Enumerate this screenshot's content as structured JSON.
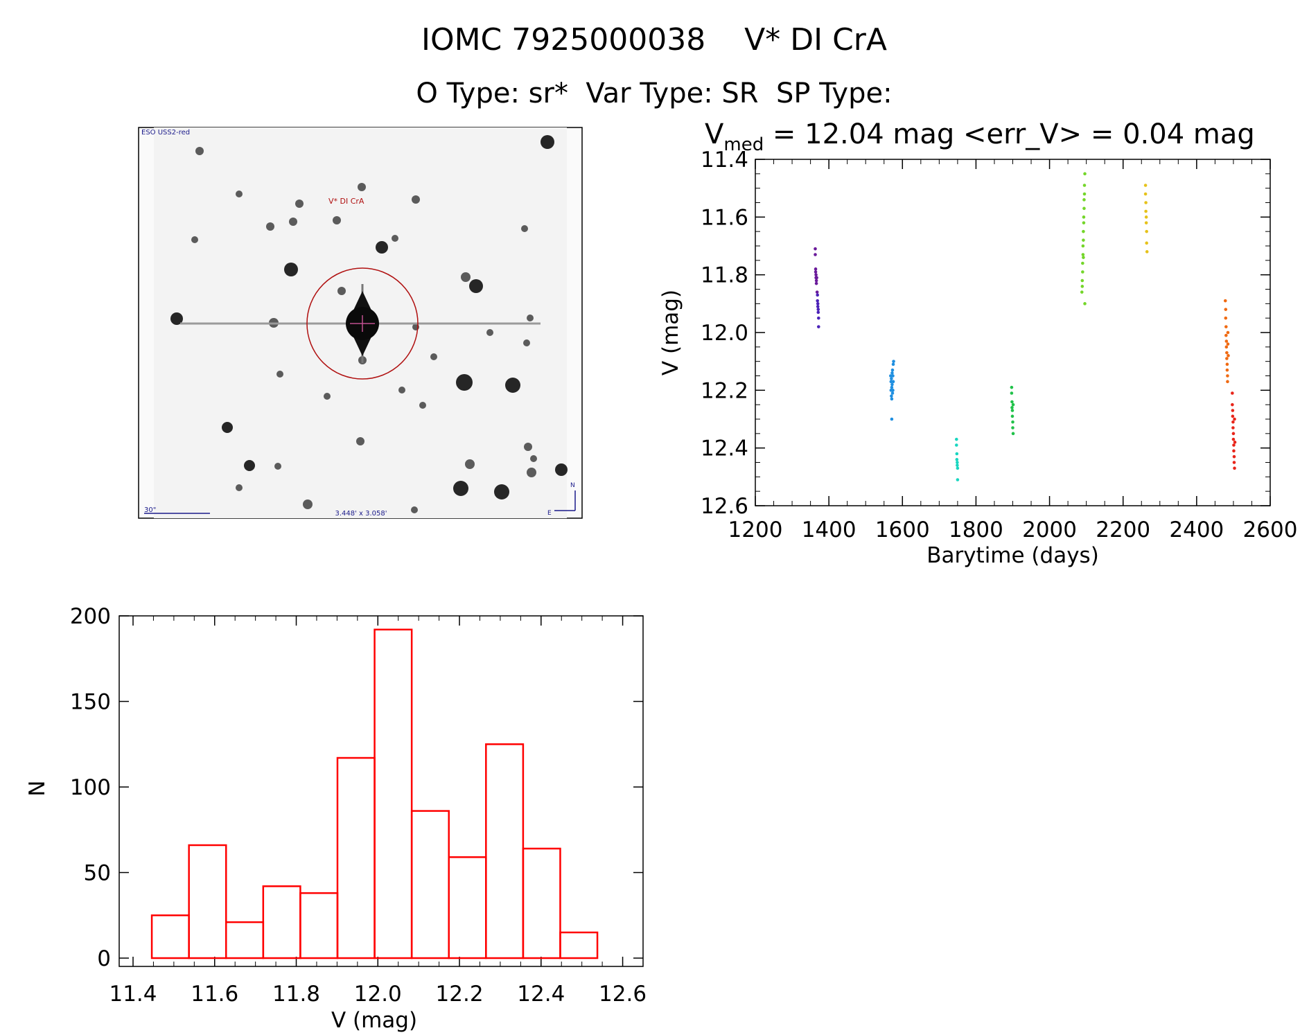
{
  "header": {
    "title": "IOMC 7925000038    V* DI CrA",
    "subtitle": "O Type: sr*  Var Type: SR  SP Type:"
  },
  "finder": {
    "survey_label": "ESO USS2-red",
    "target_label": "V* DI CrA",
    "scale_label": "30\"",
    "fov_label": "3.448' x 3.058'",
    "north_label": "N",
    "east_label": "E"
  },
  "lightcurve": {
    "stat_v": "V",
    "stat_sub": "med",
    "stat_rest": " = 12.04 mag <err_V> = 0.04 mag"
  },
  "chart_data": [
    {
      "type": "scatter",
      "title": "",
      "xlabel": "Barytime (days)",
      "ylabel": "V (mag)",
      "xlim": [
        1200,
        2600
      ],
      "ylim": [
        12.6,
        11.4
      ],
      "y_inverted": true,
      "xticks": [
        1200,
        1400,
        1600,
        1800,
        2000,
        2200,
        2400,
        2600
      ],
      "yticks": [
        11.4,
        11.6,
        11.8,
        12.0,
        12.2,
        12.4,
        12.6
      ],
      "xtick_labels": [
        "1200",
        "1400",
        "1600",
        "1800",
        "2000",
        "2200",
        "2400",
        "2600"
      ],
      "ytick_labels": [
        "11.4",
        "11.6",
        "11.8",
        "12.0",
        "12.2",
        "12.4",
        "12.6"
      ],
      "grid": false,
      "series": [
        {
          "color": "#6a1a9a",
          "points": [
            [
              1363,
              11.71
            ],
            [
              1363,
              11.73
            ],
            [
              1364,
              11.78
            ],
            [
              1364,
              11.79
            ],
            [
              1365,
              11.8
            ],
            [
              1365,
              11.81
            ],
            [
              1366,
              11.82
            ],
            [
              1366,
              11.83
            ],
            [
              1367,
              11.81
            ],
            [
              1368,
              11.86
            ]
          ]
        },
        {
          "color": "#4b22b8",
          "points": [
            [
              1369,
              11.87
            ],
            [
              1369,
              11.89
            ],
            [
              1370,
              11.9
            ],
            [
              1370,
              11.91
            ],
            [
              1371,
              11.92
            ],
            [
              1371,
              11.93
            ],
            [
              1372,
              11.95
            ],
            [
              1372,
              11.98
            ]
          ]
        },
        {
          "color": "#1f8fe0",
          "points": [
            [
              1568,
              12.15
            ],
            [
              1569,
              12.17
            ],
            [
              1569,
              12.2
            ],
            [
              1570,
              12.22
            ],
            [
              1570,
              12.16
            ],
            [
              1571,
              12.19
            ],
            [
              1571,
              12.23
            ],
            [
              1572,
              12.14
            ],
            [
              1572,
              12.18
            ],
            [
              1573,
              12.21
            ],
            [
              1573,
              12.13
            ],
            [
              1574,
              12.15
            ],
            [
              1574,
              12.2
            ],
            [
              1575,
              12.11
            ],
            [
              1575,
              12.17
            ],
            [
              1576,
              12.1
            ],
            [
              1571,
              12.3
            ]
          ]
        },
        {
          "color": "#19d6c0",
          "points": [
            [
              1747,
              12.37
            ],
            [
              1747,
              12.39
            ],
            [
              1748,
              12.42
            ],
            [
              1748,
              12.44
            ],
            [
              1749,
              12.45
            ],
            [
              1749,
              12.46
            ],
            [
              1750,
              12.47
            ],
            [
              1750,
              12.51
            ]
          ]
        },
        {
          "color": "#21c24a",
          "points": [
            [
              1897,
              12.19
            ],
            [
              1897,
              12.21
            ],
            [
              1898,
              12.24
            ],
            [
              1898,
              12.26
            ],
            [
              1899,
              12.27
            ],
            [
              1899,
              12.29
            ],
            [
              1900,
              12.31
            ],
            [
              1900,
              12.33
            ],
            [
              1901,
              12.35
            ],
            [
              1901,
              12.25
            ]
          ]
        },
        {
          "color": "#74d62a",
          "points": [
            [
              2088,
              11.86
            ],
            [
              2089,
              11.84
            ],
            [
              2089,
              11.82
            ],
            [
              2090,
              11.79
            ],
            [
              2090,
              11.76
            ],
            [
              2091,
              11.73
            ],
            [
              2091,
              11.7
            ],
            [
              2092,
              11.68
            ],
            [
              2092,
              11.65
            ],
            [
              2093,
              11.62
            ],
            [
              2093,
              11.6
            ],
            [
              2094,
              11.57
            ],
            [
              2094,
              11.54
            ],
            [
              2095,
              11.52
            ],
            [
              2095,
              11.49
            ],
            [
              2096,
              11.45
            ],
            [
              2096,
              11.9
            ],
            [
              2092,
              11.74
            ]
          ]
        },
        {
          "color": "#e6c21a",
          "points": [
            [
              2261,
              11.49
            ],
            [
              2261,
              11.52
            ],
            [
              2262,
              11.55
            ],
            [
              2262,
              11.58
            ],
            [
              2263,
              11.6
            ],
            [
              2263,
              11.62
            ],
            [
              2264,
              11.65
            ],
            [
              2264,
              11.69
            ],
            [
              2265,
              11.72
            ]
          ]
        },
        {
          "color": "#f06a12",
          "points": [
            [
              2478,
              11.89
            ],
            [
              2479,
              11.92
            ],
            [
              2479,
              11.95
            ],
            [
              2480,
              11.98
            ],
            [
              2480,
              12.01
            ],
            [
              2481,
              12.03
            ],
            [
              2481,
              12.05
            ],
            [
              2482,
              12.07
            ],
            [
              2482,
              12.09
            ],
            [
              2483,
              12.11
            ],
            [
              2483,
              12.13
            ],
            [
              2484,
              12.15
            ],
            [
              2484,
              12.17
            ],
            [
              2485,
              12.0
            ],
            [
              2485,
              12.04
            ],
            [
              2486,
              12.08
            ]
          ]
        },
        {
          "color": "#e8251a",
          "points": [
            [
              2497,
              12.21
            ],
            [
              2497,
              12.25
            ],
            [
              2498,
              12.27
            ],
            [
              2498,
              12.29
            ],
            [
              2499,
              12.31
            ],
            [
              2499,
              12.33
            ],
            [
              2500,
              12.35
            ],
            [
              2500,
              12.37
            ],
            [
              2501,
              12.39
            ],
            [
              2501,
              12.41
            ],
            [
              2502,
              12.43
            ],
            [
              2502,
              12.45
            ],
            [
              2503,
              12.47
            ],
            [
              2503,
              12.3
            ],
            [
              2504,
              12.38
            ]
          ]
        }
      ]
    },
    {
      "type": "bar",
      "title": "",
      "xlabel": "V (mag)",
      "ylabel": "N",
      "xlim": [
        11.4,
        12.65
      ],
      "ylim": [
        0,
        200
      ],
      "xticks": [
        11.4,
        11.6,
        11.8,
        12.0,
        12.2,
        12.4,
        12.6
      ],
      "yticks": [
        0,
        50,
        100,
        150,
        200
      ],
      "xtick_labels": [
        "11.4",
        "11.6",
        "11.8",
        "12.0",
        "12.2",
        "12.4",
        "12.6"
      ],
      "ytick_labels": [
        "0",
        "50",
        "100",
        "150",
        "200"
      ],
      "grid": false,
      "color": "#ff0000",
      "bin_edges": [
        11.446,
        11.537,
        11.628,
        11.719,
        11.81,
        11.901,
        11.992,
        12.083,
        12.174,
        12.265,
        12.356,
        12.447,
        12.538
      ],
      "values": [
        25,
        66,
        21,
        42,
        38,
        117,
        192,
        86,
        59,
        125,
        64,
        15
      ]
    }
  ]
}
